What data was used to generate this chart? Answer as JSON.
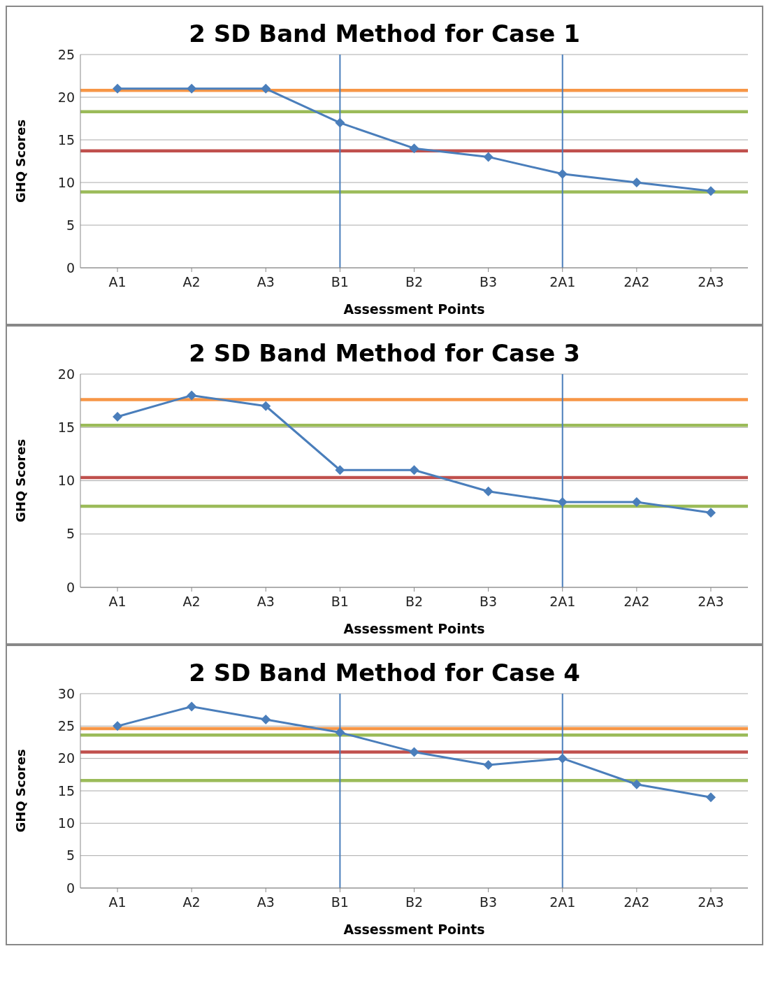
{
  "chart_data": [
    {
      "type": "line",
      "title": "2 SD Band Method for Case 1",
      "xlabel": "Assessment Points",
      "ylabel": "GHQ Scores",
      "categories": [
        "A1",
        "A2",
        "A3",
        "B1",
        "B2",
        "B3",
        "2A1",
        "2A2",
        "2A3"
      ],
      "ylim": [
        0,
        25
      ],
      "yticks": [
        0,
        5,
        10,
        15,
        20,
        25
      ],
      "grid": "y",
      "marker": "diamond",
      "line_style": "solid",
      "series": [
        {
          "color": "#4a7ebb",
          "values": [
            21,
            21,
            21,
            17,
            14,
            13,
            11,
            10,
            9
          ]
        }
      ],
      "ref_lines": [
        {
          "axis": "y",
          "value": 20.8,
          "color": "#f79646"
        },
        {
          "axis": "y",
          "value": 18.3,
          "color": "#9bbb59"
        },
        {
          "axis": "y",
          "value": 13.7,
          "color": "#c0504d"
        },
        {
          "axis": "y",
          "value": 8.9,
          "color": "#9bbb59"
        },
        {
          "axis": "x",
          "value": "B1",
          "color": "#4a7ebb"
        },
        {
          "axis": "x",
          "value": "2A1",
          "color": "#4a7ebb"
        }
      ]
    },
    {
      "type": "line",
      "title": "2 SD Band Method for Case 3",
      "xlabel": "Assessment Points",
      "ylabel": "GHQ Scores",
      "categories": [
        "A1",
        "A2",
        "A3",
        "B1",
        "B2",
        "B3",
        "2A1",
        "2A2",
        "2A3"
      ],
      "ylim": [
        0,
        20
      ],
      "yticks": [
        0,
        5,
        10,
        15,
        20
      ],
      "grid": "y",
      "marker": "diamond",
      "line_style": "solid",
      "series": [
        {
          "color": "#4a7ebb",
          "values": [
            16,
            18,
            17,
            11,
            11,
            9,
            8,
            8,
            7
          ]
        }
      ],
      "ref_lines": [
        {
          "axis": "y",
          "value": 17.6,
          "color": "#f79646"
        },
        {
          "axis": "y",
          "value": 15.2,
          "color": "#9bbb59"
        },
        {
          "axis": "y",
          "value": 10.3,
          "color": "#c0504d"
        },
        {
          "axis": "y",
          "value": 7.6,
          "color": "#9bbb59"
        },
        {
          "axis": "x",
          "value": "2A1",
          "color": "#4a7ebb"
        }
      ]
    },
    {
      "type": "line",
      "title": "2 SD Band Method for Case 4",
      "xlabel": "Assessment Points",
      "ylabel": "GHQ Scores",
      "categories": [
        "A1",
        "A2",
        "A3",
        "B1",
        "B2",
        "B3",
        "2A1",
        "2A2",
        "2A3"
      ],
      "ylim": [
        0,
        30
      ],
      "yticks": [
        0,
        5,
        10,
        15,
        20,
        25,
        30
      ],
      "grid": "y",
      "marker": "diamond",
      "line_style": "solid",
      "series": [
        {
          "color": "#4a7ebb",
          "values": [
            25,
            28,
            26,
            24,
            21,
            19,
            20,
            16,
            14
          ]
        }
      ],
      "ref_lines": [
        {
          "axis": "y",
          "value": 24.6,
          "color": "#f79646"
        },
        {
          "axis": "y",
          "value": 23.6,
          "color": "#9bbb59"
        },
        {
          "axis": "y",
          "value": 21,
          "color": "#c0504d"
        },
        {
          "axis": "y",
          "value": 16.6,
          "color": "#9bbb59"
        },
        {
          "axis": "x",
          "value": "B1",
          "color": "#4a7ebb"
        },
        {
          "axis": "x",
          "value": "2A1",
          "color": "#4a7ebb"
        }
      ]
    }
  ]
}
